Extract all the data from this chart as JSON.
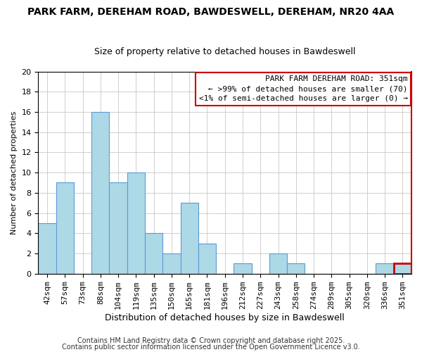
{
  "title": "PARK FARM, DEREHAM ROAD, BAWDESWELL, DEREHAM, NR20 4AA",
  "subtitle": "Size of property relative to detached houses in Bawdeswell",
  "xlabel": "Distribution of detached houses by size in Bawdeswell",
  "ylabel": "Number of detached properties",
  "bar_labels": [
    "42sqm",
    "57sqm",
    "73sqm",
    "88sqm",
    "104sqm",
    "119sqm",
    "135sqm",
    "150sqm",
    "165sqm",
    "181sqm",
    "196sqm",
    "212sqm",
    "227sqm",
    "243sqm",
    "258sqm",
    "274sqm",
    "289sqm",
    "305sqm",
    "320sqm",
    "336sqm",
    "351sqm"
  ],
  "bar_values": [
    5,
    9,
    0,
    16,
    9,
    10,
    4,
    2,
    7,
    3,
    0,
    1,
    0,
    2,
    1,
    0,
    0,
    0,
    0,
    1,
    1
  ],
  "bar_color": "#add8e6",
  "bar_edge_color": "#5b9bd5",
  "highlight_bar_index": 20,
  "ylim": [
    0,
    20
  ],
  "yticks": [
    0,
    2,
    4,
    6,
    8,
    10,
    12,
    14,
    16,
    18,
    20
  ],
  "legend_title": "PARK FARM DEREHAM ROAD: 351sqm",
  "legend_line1": "← >99% of detached houses are smaller (70)",
  "legend_line2": "<1% of semi-detached houses are larger (0) →",
  "legend_box_color": "#cc0000",
  "footnote1": "Contains HM Land Registry data © Crown copyright and database right 2025.",
  "footnote2": "Contains public sector information licensed under the Open Government Licence v3.0.",
  "title_fontsize": 10,
  "subtitle_fontsize": 9,
  "xlabel_fontsize": 9,
  "ylabel_fontsize": 8,
  "tick_fontsize": 8,
  "footnote_fontsize": 7,
  "legend_fontsize": 8
}
